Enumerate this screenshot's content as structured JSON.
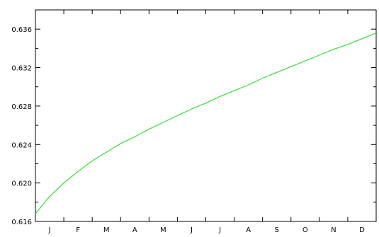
{
  "chart_data": {
    "type": "line",
    "title": "",
    "xlabel": "",
    "ylabel": "",
    "x_categories": [
      "J",
      "F",
      "M",
      "A",
      "M",
      "J",
      "J",
      "A",
      "S",
      "O",
      "N",
      "D"
    ],
    "xlim": [
      0,
      12
    ],
    "ylim": [
      0.616,
      0.638
    ],
    "y_ticks": [
      0.616,
      0.62,
      0.624,
      0.628,
      0.632,
      0.636
    ],
    "y_tick_labels": [
      "0.616",
      "0.620",
      "0.624",
      "0.628",
      "0.632",
      "0.636"
    ],
    "grid": false,
    "series": [
      {
        "color": "#33dd33",
        "x": [
          0.0,
          0.5,
          1.0,
          1.5,
          2.0,
          2.5,
          3.0,
          3.5,
          4.0,
          4.5,
          5.0,
          5.5,
          6.0,
          6.5,
          7.0,
          7.5,
          8.0,
          8.5,
          9.0,
          9.5,
          10.0,
          10.5,
          11.0,
          11.5,
          12.0
        ],
        "y": [
          0.6168,
          0.6186,
          0.62,
          0.6212,
          0.6223,
          0.6232,
          0.6241,
          0.6248,
          0.6256,
          0.6263,
          0.627,
          0.6277,
          0.6283,
          0.629,
          0.6296,
          0.6302,
          0.6309,
          0.6315,
          0.6321,
          0.6327,
          0.6333,
          0.6339,
          0.6344,
          0.635,
          0.6356
        ]
      }
    ]
  }
}
